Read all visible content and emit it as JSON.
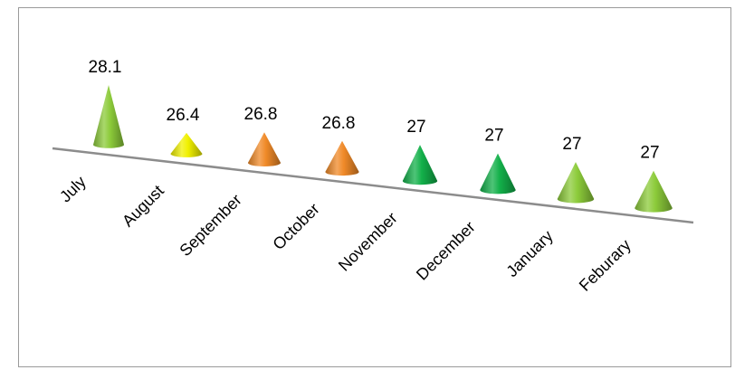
{
  "chart_data": {
    "type": "bar",
    "style": "3d-cone",
    "categories": [
      "July",
      "August",
      "September",
      "October",
      "November",
      "December",
      "January",
      "Feburary"
    ],
    "values": [
      28.1,
      26.4,
      26.8,
      26.8,
      27,
      27,
      27,
      27
    ],
    "value_labels": [
      "28.1",
      "26.4",
      "26.8",
      "26.8",
      "27",
      "27",
      "27",
      "27"
    ],
    "colors": [
      "#8ccb3a",
      "#f0f000",
      "#f08a28",
      "#f08a28",
      "#13b04a",
      "#13b04a",
      "#8ccb3a",
      "#8ccb3a"
    ],
    "ylim": [
      25.5,
      28.1
    ],
    "title": "",
    "xlabel": "",
    "ylabel": "",
    "grid": false,
    "legend": "none"
  }
}
